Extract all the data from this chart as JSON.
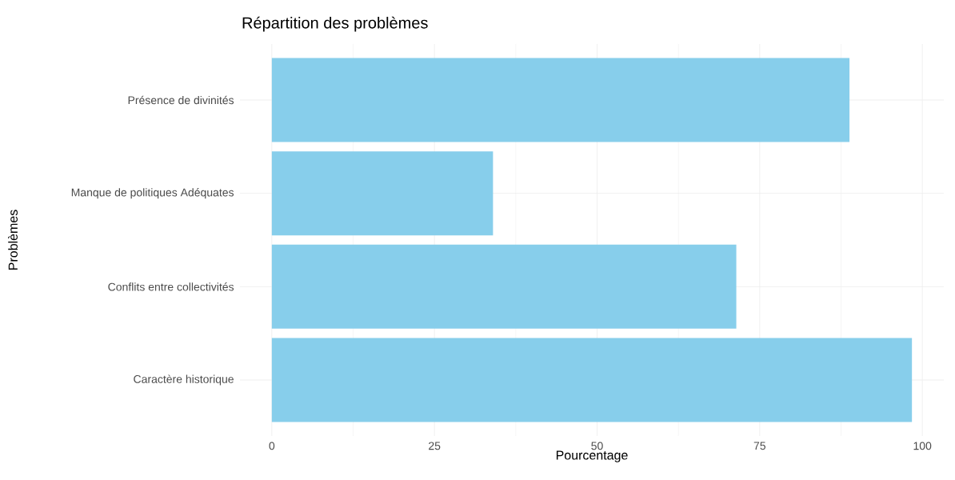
{
  "chart_data": {
    "type": "bar",
    "orientation": "horizontal",
    "title": "Répartition des problèmes",
    "xlabel": "Pourcentage",
    "ylabel": "Problèmes",
    "categories": [
      "Présence de divinités",
      "Manque de politiques Adéquates",
      "Conflits entre collectivités",
      "Caractère historique"
    ],
    "values": [
      88.8,
      34.0,
      71.4,
      98.4
    ],
    "color": "#87ceeb",
    "xlim": [
      -4.9,
      103.3
    ],
    "xticks": [
      0,
      25,
      50,
      75,
      100
    ],
    "grid": true
  }
}
